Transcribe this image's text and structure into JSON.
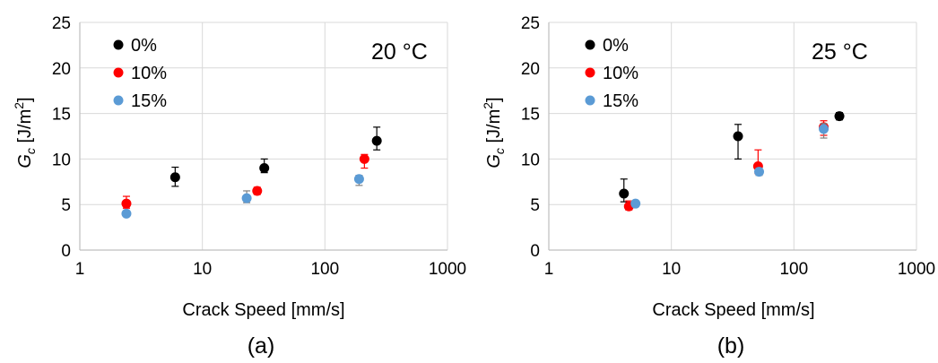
{
  "chart_data": [
    {
      "type": "scatter",
      "panel_label": "(a)",
      "annotation": "20 °C",
      "xlabel": "Crack Speed [mm/s]",
      "ylabel_main": "G",
      "ylabel_sub": "c",
      "ylabel_unit": " [J/m",
      "ylabel_sup": "2",
      "ylabel_close": "]",
      "x_scale": "log",
      "xlim": [
        1,
        1000
      ],
      "ylim": [
        0,
        25
      ],
      "x_ticks": [
        "1",
        "10",
        "100",
        "1000"
      ],
      "y_ticks": [
        "0",
        "5",
        "10",
        "15",
        "20",
        "25"
      ],
      "grid": true,
      "legend_position": "top-left",
      "series": [
        {
          "name": "0%",
          "color": "#000000",
          "points": [
            {
              "x": 6.0,
              "y": 8.0,
              "err_lo": 1.0,
              "err_hi": 1.1
            },
            {
              "x": 32,
              "y": 9.0,
              "err_lo": 0.5,
              "err_hi": 1.0
            },
            {
              "x": 265,
              "y": 12.0,
              "err_lo": 1.0,
              "err_hi": 1.5
            }
          ]
        },
        {
          "name": "10%",
          "color": "#ff0000",
          "points": [
            {
              "x": 2.4,
              "y": 5.1,
              "err_lo": 0.5,
              "err_hi": 0.8
            },
            {
              "x": 28,
              "y": 6.5,
              "err_lo": 0.4,
              "err_hi": 0.4
            },
            {
              "x": 210,
              "y": 10.0,
              "err_lo": 1.0,
              "err_hi": 0.5
            }
          ]
        },
        {
          "name": "15%",
          "color": "#5b9bd5",
          "points": [
            {
              "x": 2.4,
              "y": 4.0,
              "err_lo": 0.3,
              "err_hi": 0.3
            },
            {
              "x": 23,
              "y": 5.7,
              "err_lo": 0.5,
              "err_hi": 0.8
            },
            {
              "x": 190,
              "y": 7.8,
              "err_lo": 0.7,
              "err_hi": 0.4
            }
          ]
        }
      ]
    },
    {
      "type": "scatter",
      "panel_label": "(b)",
      "annotation": "25 °C",
      "xlabel": "Crack Speed [mm/s]",
      "ylabel_main": "G",
      "ylabel_sub": "c",
      "ylabel_unit": " [J/m",
      "ylabel_sup": "2",
      "ylabel_close": "]",
      "x_scale": "log",
      "xlim": [
        1,
        1000
      ],
      "ylim": [
        0,
        25
      ],
      "x_ticks": [
        "1",
        "10",
        "100",
        "1000"
      ],
      "y_ticks": [
        "0",
        "5",
        "10",
        "15",
        "20",
        "25"
      ],
      "grid": true,
      "legend_position": "top-left",
      "series": [
        {
          "name": "0%",
          "color": "#000000",
          "points": [
            {
              "x": 4.1,
              "y": 6.2,
              "err_lo": 0.9,
              "err_hi": 1.6
            },
            {
              "x": 35,
              "y": 12.5,
              "err_lo": 2.5,
              "err_hi": 1.3
            },
            {
              "x": 235,
              "y": 14.7,
              "err_lo": 0.4,
              "err_hi": 0.4
            }
          ]
        },
        {
          "name": "10%",
          "color": "#ff0000",
          "points": [
            {
              "x": 4.5,
              "y": 4.8,
              "err_lo": 0.4,
              "err_hi": 0.6
            },
            {
              "x": 51,
              "y": 9.2,
              "err_lo": 0.8,
              "err_hi": 1.8
            },
            {
              "x": 175,
              "y": 13.5,
              "err_lo": 0.9,
              "err_hi": 0.7
            }
          ]
        },
        {
          "name": "15%",
          "color": "#5b9bd5",
          "points": [
            {
              "x": 5.1,
              "y": 5.1,
              "err_lo": 0.3,
              "err_hi": 0.3
            },
            {
              "x": 52,
              "y": 8.6,
              "err_lo": 0.4,
              "err_hi": 0.4
            },
            {
              "x": 175,
              "y": 13.3,
              "err_lo": 1.0,
              "err_hi": 0.6
            }
          ]
        }
      ]
    }
  ]
}
